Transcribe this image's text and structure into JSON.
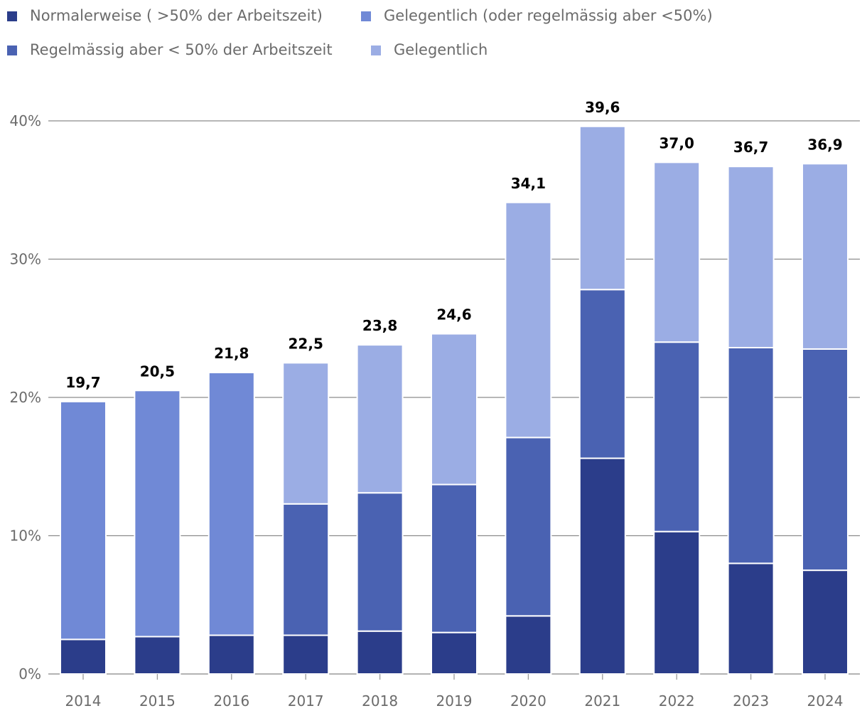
{
  "chart_data": {
    "type": "bar",
    "stacked": true,
    "title": "",
    "xlabel": "",
    "ylabel": "",
    "ylim": [
      0,
      40
    ],
    "y_ticks": [
      0,
      10,
      20,
      30,
      40
    ],
    "y_tick_labels": [
      "0%",
      "10%",
      "20%",
      "30%",
      "40%"
    ],
    "grid": true,
    "legend_position": "top-left",
    "categories": [
      "2014",
      "2015",
      "2016",
      "2017",
      "2018",
      "2019",
      "2020",
      "2021",
      "2022",
      "2023",
      "2024"
    ],
    "legend": [
      {
        "name": "Normalerweise ( >50% der Arbeitszeit)",
        "color": "#2b3d8a"
      },
      {
        "name": "Gelegentlich (oder regelmässig aber <50%)",
        "color": "#7089d6"
      },
      {
        "name": "Regelmässig aber < 50% der Arbeitszeit",
        "color": "#4a62b2"
      },
      {
        "name": "Gelegentlich",
        "color": "#9badE4"
      }
    ],
    "series": [
      {
        "name": "Normalerweise ( >50% der Arbeitszeit)",
        "color": "#2b3d8a",
        "values": [
          2.5,
          2.7,
          2.8,
          2.8,
          3.1,
          3.0,
          4.2,
          15.6,
          10.3,
          8.0,
          7.5
        ]
      },
      {
        "name": "Gelegentlich (oder regelmässig aber <50%)",
        "color": "#7089d6",
        "values": [
          17.2,
          17.8,
          19.0,
          null,
          null,
          null,
          null,
          null,
          null,
          null,
          null
        ]
      },
      {
        "name": "Regelmässig aber < 50% der Arbeitszeit",
        "color": "#4a62b2",
        "values": [
          null,
          null,
          null,
          9.5,
          10.0,
          10.7,
          12.9,
          12.2,
          13.7,
          15.6,
          16.0
        ]
      },
      {
        "name": "Gelegentlich",
        "color": "#9badE4",
        "values": [
          null,
          null,
          null,
          10.2,
          10.7,
          10.9,
          17.0,
          11.8,
          13.0,
          13.1,
          13.4
        ]
      }
    ],
    "totals": [
      19.7,
      20.5,
      21.8,
      22.5,
      23.8,
      24.6,
      34.1,
      39.6,
      37.0,
      36.7,
      36.9
    ],
    "total_labels": [
      "19,7",
      "20,5",
      "21,8",
      "22,5",
      "23,8",
      "24,6",
      "34,1",
      "39,6",
      "37,0",
      "36,7",
      "36,9"
    ]
  }
}
